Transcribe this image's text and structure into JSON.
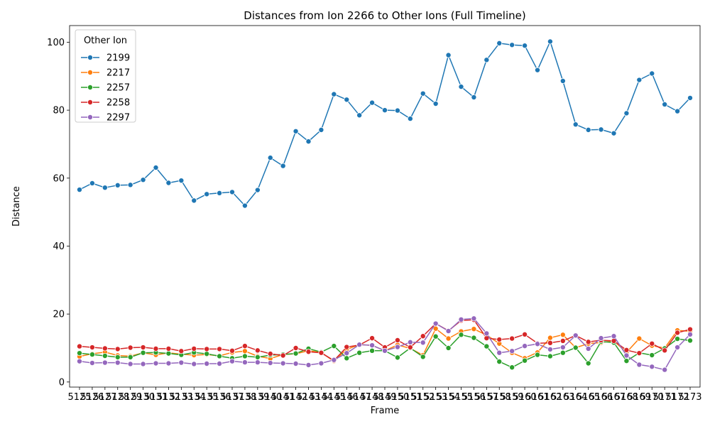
{
  "chart_data": {
    "type": "line",
    "title": "Distances from Ion 2266 to Other Ions (Full Timeline)",
    "xlabel": "Frame",
    "ylabel": "Distance",
    "ylim": [
      -1.5,
      104.9
    ],
    "yticks": [
      0,
      20,
      40,
      60,
      80,
      100
    ],
    "grid": false,
    "legend": {
      "title": "Other Ion",
      "placement": "top-left"
    },
    "categories": [
      "5125",
      "5126",
      "5127",
      "5128",
      "5129",
      "5130",
      "5131",
      "5132",
      "5133",
      "5134",
      "5135",
      "5136",
      "5137",
      "5138",
      "5139",
      "5140",
      "5141",
      "5142",
      "5143",
      "5144",
      "5145",
      "5146",
      "5147",
      "5148",
      "5149",
      "5150",
      "5151",
      "5152",
      "5153",
      "5154",
      "5155",
      "5156",
      "5157",
      "5158",
      "5159",
      "5160",
      "5161",
      "5162",
      "5163",
      "5164",
      "5165",
      "5166",
      "5167",
      "5168",
      "5169",
      "5170",
      "5171",
      "5172",
      "5173"
    ],
    "series": [
      {
        "name": "2199",
        "color": "#1f77b4",
        "values": [
          56.6,
          58.5,
          57.2,
          57.9,
          58.0,
          59.5,
          63.1,
          58.6,
          59.3,
          53.4,
          55.3,
          55.6,
          55.9,
          51.9,
          56.5,
          66.0,
          63.6,
          73.8,
          70.8,
          74.2,
          84.7,
          83.1,
          78.5,
          82.2,
          80.0,
          79.9,
          77.5,
          84.9,
          81.9,
          96.2,
          86.9,
          83.8,
          94.8,
          99.7,
          99.2,
          99.0,
          91.8,
          100.2,
          88.6,
          75.8,
          74.2,
          74.3,
          73.2,
          79.1,
          88.9,
          90.8,
          81.7,
          79.7,
          83.6
        ]
      },
      {
        "name": "2217",
        "color": "#ff7f0e",
        "values": [
          7.5,
          8.3,
          8.8,
          7.8,
          7.6,
          8.6,
          8.0,
          8.6,
          8.2,
          7.9,
          8.1,
          7.7,
          8.7,
          9.1,
          7.6,
          6.9,
          8.1,
          8.3,
          9.2,
          8.7,
          6.1,
          9.6,
          11.0,
          10.8,
          9.2,
          10.9,
          9.9,
          7.9,
          15.7,
          12.8,
          14.9,
          15.6,
          13.8,
          11.3,
          8.6,
          7.0,
          8.7,
          13.0,
          13.9,
          10.1,
          11.3,
          11.6,
          12.1,
          8.7,
          12.8,
          10.7,
          10.0,
          15.2,
          14.9
        ]
      },
      {
        "name": "2257",
        "color": "#2ca02c",
        "values": [
          8.5,
          8.1,
          7.7,
          7.3,
          7.3,
          8.6,
          8.7,
          8.4,
          8.0,
          8.7,
          8.3,
          7.6,
          7.0,
          7.6,
          7.3,
          7.9,
          8.1,
          8.4,
          9.8,
          8.8,
          10.6,
          7.0,
          8.6,
          9.2,
          9.2,
          7.2,
          10.0,
          7.4,
          13.4,
          10.0,
          13.9,
          13.0,
          10.5,
          6.0,
          4.3,
          6.3,
          8.0,
          7.6,
          8.6,
          10.1,
          5.5,
          11.9,
          11.6,
          6.2,
          8.6,
          7.9,
          9.9,
          12.7,
          12.2
        ]
      },
      {
        "name": "2258",
        "color": "#d62728",
        "values": [
          10.5,
          10.2,
          9.9,
          9.7,
          10.1,
          10.2,
          9.8,
          9.8,
          9.1,
          9.8,
          9.7,
          9.7,
          9.2,
          10.6,
          9.3,
          8.3,
          7.8,
          10.0,
          8.9,
          8.6,
          6.3,
          10.3,
          10.9,
          12.9,
          10.2,
          12.3,
          10.2,
          13.5,
          17.2,
          15.1,
          18.1,
          18.3,
          12.9,
          12.5,
          12.8,
          14.0,
          11.4,
          11.5,
          12.1,
          13.7,
          11.8,
          12.3,
          12.1,
          9.4,
          8.5,
          11.3,
          9.3,
          14.5,
          15.5
        ]
      },
      {
        "name": "2297",
        "color": "#9467bd",
        "values": [
          6.1,
          5.6,
          5.7,
          5.7,
          5.3,
          5.3,
          5.5,
          5.5,
          5.7,
          5.3,
          5.4,
          5.4,
          6.1,
          5.8,
          5.8,
          5.6,
          5.5,
          5.4,
          5.0,
          5.5,
          6.5,
          8.5,
          11.0,
          10.8,
          9.2,
          10.3,
          11.7,
          11.6,
          17.2,
          15.0,
          18.4,
          18.7,
          14.3,
          8.6,
          9.1,
          10.6,
          11.2,
          9.6,
          10.2,
          13.7,
          9.8,
          12.9,
          13.5,
          7.8,
          5.1,
          4.5,
          3.6,
          10.2,
          14.0
        ]
      }
    ]
  }
}
